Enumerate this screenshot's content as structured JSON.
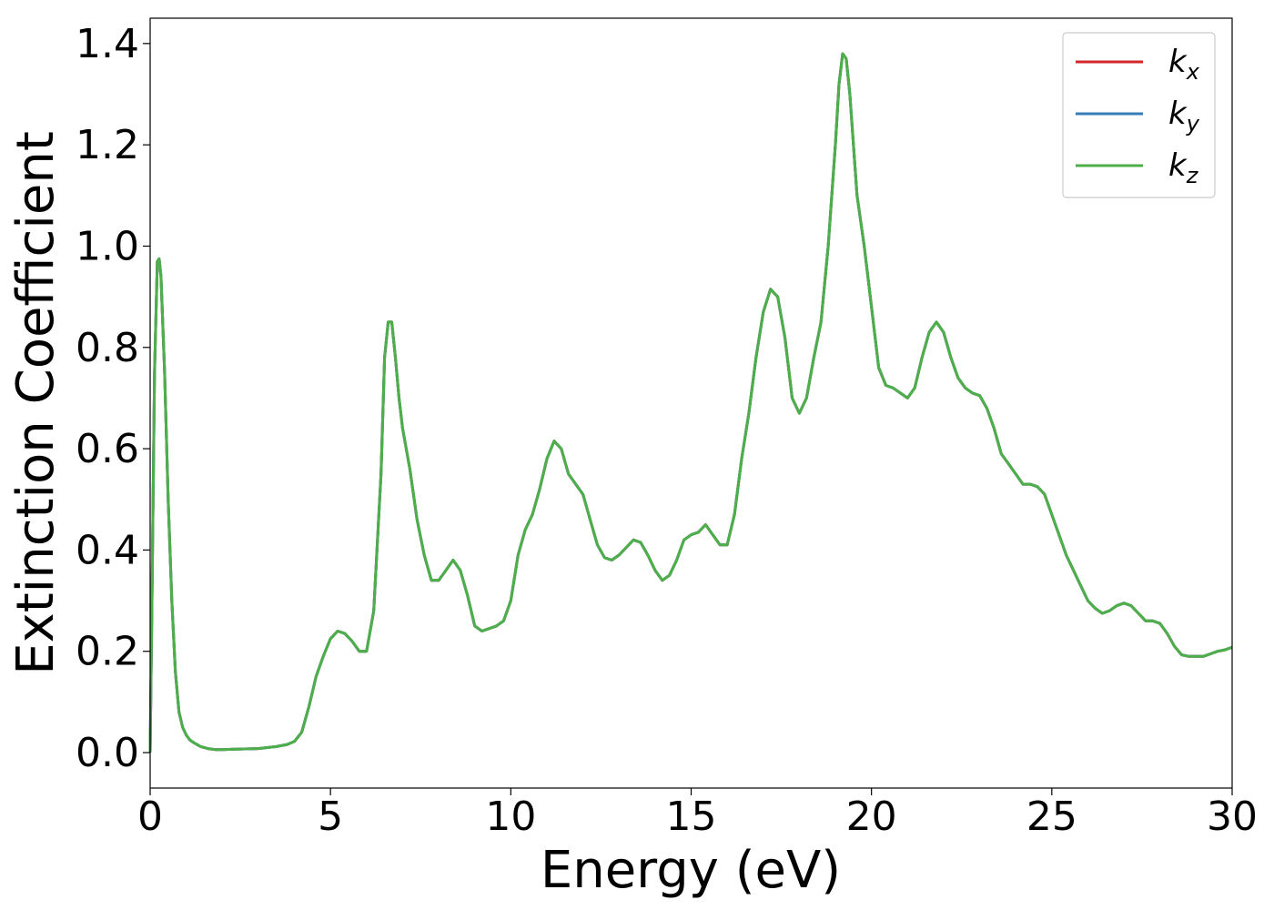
{
  "chart_data": {
    "type": "line",
    "xlabel": "Energy (eV)",
    "ylabel": "Extinction Coefficient",
    "xlim": [
      0,
      30
    ],
    "ylim": [
      -0.07,
      1.45
    ],
    "xticks": [
      0,
      5,
      10,
      15,
      20,
      25,
      30
    ],
    "xtick_labels": [
      "0",
      "5",
      "10",
      "15",
      "20",
      "25",
      "30"
    ],
    "yticks": [
      0.0,
      0.2,
      0.4,
      0.6,
      0.8,
      1.0,
      1.2,
      1.4
    ],
    "ytick_labels": [
      "0.0",
      "0.2",
      "0.4",
      "0.6",
      "0.8",
      "1.0",
      "1.2",
      "1.4"
    ],
    "grid": false,
    "legend_position": "top-right",
    "series": [
      {
        "name": "k",
        "subscript": "x",
        "color": "#d62728"
      },
      {
        "name": "k",
        "subscript": "y",
        "color": "#377eb8"
      },
      {
        "name": "k",
        "subscript": "z",
        "color": "#4daf4a"
      }
    ],
    "x": [
      0,
      0.05,
      0.12,
      0.2,
      0.25,
      0.3,
      0.4,
      0.5,
      0.6,
      0.7,
      0.8,
      0.9,
      1.0,
      1.1,
      1.2,
      1.4,
      1.6,
      1.8,
      2.0,
      2.5,
      3.0,
      3.5,
      3.8,
      4.0,
      4.2,
      4.4,
      4.6,
      4.8,
      5.0,
      5.2,
      5.4,
      5.6,
      5.8,
      6.0,
      6.2,
      6.4,
      6.5,
      6.6,
      6.7,
      6.8,
      6.9,
      7.0,
      7.2,
      7.4,
      7.6,
      7.8,
      8.0,
      8.2,
      8.4,
      8.6,
      8.8,
      9.0,
      9.2,
      9.4,
      9.6,
      9.8,
      10.0,
      10.2,
      10.4,
      10.6,
      10.8,
      11.0,
      11.2,
      11.4,
      11.6,
      11.8,
      12.0,
      12.2,
      12.4,
      12.6,
      12.8,
      13.0,
      13.2,
      13.4,
      13.6,
      13.8,
      14.0,
      14.2,
      14.4,
      14.6,
      14.8,
      15.0,
      15.2,
      15.4,
      15.6,
      15.8,
      16.0,
      16.2,
      16.4,
      16.6,
      16.8,
      17.0,
      17.2,
      17.4,
      17.6,
      17.8,
      18.0,
      18.2,
      18.4,
      18.6,
      18.8,
      19.0,
      19.1,
      19.2,
      19.3,
      19.4,
      19.6,
      19.8,
      20.0,
      20.2,
      20.4,
      20.6,
      20.8,
      21.0,
      21.2,
      21.4,
      21.6,
      21.8,
      22.0,
      22.2,
      22.4,
      22.6,
      22.8,
      23.0,
      23.2,
      23.4,
      23.6,
      23.8,
      24.0,
      24.2,
      24.4,
      24.6,
      24.8,
      25.0,
      25.2,
      25.4,
      25.6,
      25.8,
      26.0,
      26.2,
      26.4,
      26.6,
      26.8,
      27.0,
      27.2,
      27.4,
      27.6,
      27.8,
      28.0,
      28.2,
      28.4,
      28.6,
      28.8,
      29.0,
      29.2,
      29.4,
      29.6,
      29.8,
      30.0
    ],
    "y": [
      0.0,
      0.3,
      0.75,
      0.97,
      0.975,
      0.94,
      0.75,
      0.5,
      0.3,
      0.16,
      0.08,
      0.05,
      0.035,
      0.025,
      0.02,
      0.012,
      0.008,
      0.006,
      0.006,
      0.007,
      0.008,
      0.012,
      0.016,
      0.022,
      0.04,
      0.09,
      0.15,
      0.19,
      0.225,
      0.24,
      0.235,
      0.22,
      0.2,
      0.2,
      0.28,
      0.55,
      0.78,
      0.85,
      0.85,
      0.78,
      0.7,
      0.64,
      0.56,
      0.46,
      0.39,
      0.34,
      0.34,
      0.36,
      0.38,
      0.36,
      0.31,
      0.25,
      0.24,
      0.245,
      0.25,
      0.26,
      0.3,
      0.39,
      0.44,
      0.47,
      0.52,
      0.58,
      0.615,
      0.6,
      0.55,
      0.53,
      0.51,
      0.46,
      0.41,
      0.385,
      0.38,
      0.39,
      0.405,
      0.42,
      0.415,
      0.39,
      0.36,
      0.34,
      0.35,
      0.38,
      0.42,
      0.43,
      0.435,
      0.45,
      0.43,
      0.41,
      0.41,
      0.47,
      0.58,
      0.67,
      0.78,
      0.87,
      0.915,
      0.9,
      0.82,
      0.7,
      0.67,
      0.7,
      0.78,
      0.85,
      1.0,
      1.2,
      1.32,
      1.38,
      1.37,
      1.3,
      1.1,
      1.0,
      0.88,
      0.76,
      0.725,
      0.72,
      0.71,
      0.7,
      0.72,
      0.78,
      0.83,
      0.85,
      0.83,
      0.78,
      0.74,
      0.72,
      0.71,
      0.705,
      0.68,
      0.64,
      0.59,
      0.57,
      0.55,
      0.53,
      0.53,
      0.525,
      0.51,
      0.47,
      0.43,
      0.39,
      0.36,
      0.33,
      0.3,
      0.285,
      0.275,
      0.28,
      0.29,
      0.295,
      0.29,
      0.275,
      0.26,
      0.26,
      0.255,
      0.235,
      0.21,
      0.193,
      0.19,
      0.19,
      0.19,
      0.195,
      0.2,
      0.203,
      0.208
    ]
  }
}
